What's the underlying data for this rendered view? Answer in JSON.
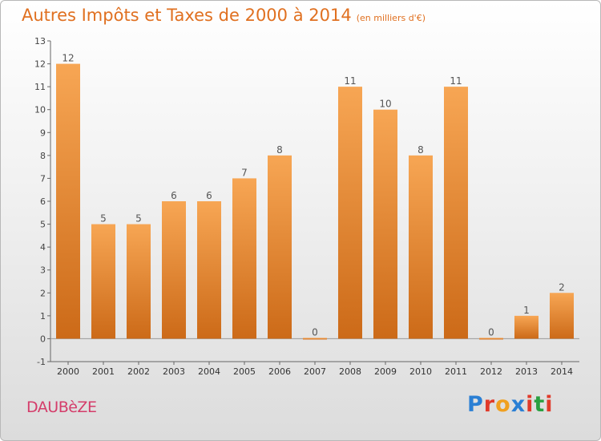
{
  "title": "Autres Impôts et Taxes de 2000 à 2014",
  "subtitle": "(en milliers d'€)",
  "town": "DAUBèZE",
  "logo": {
    "text": "Proxiti",
    "letters": [
      "P",
      "r",
      "o",
      "x",
      "i",
      "t",
      "i"
    ],
    "colors": [
      "#2a7fd4",
      "#e03a2a",
      "#f0a020",
      "#2a7fd4",
      "#e03a2a",
      "#2aa040",
      "#e03a2a"
    ]
  },
  "colors": {
    "bar_top": "#f7a654",
    "bar_bottom": "#cc6a18",
    "title": "#e07020",
    "town": "#d43c6a",
    "label": "#555555"
  },
  "chart_data": {
    "type": "bar",
    "categories": [
      "2000",
      "2001",
      "2002",
      "2003",
      "2004",
      "2005",
      "2006",
      "2007",
      "2008",
      "2009",
      "2010",
      "2011",
      "2012",
      "2013",
      "2014"
    ],
    "values": [
      12,
      5,
      5,
      6,
      6,
      7,
      8,
      0,
      11,
      10,
      8,
      11,
      0,
      1,
      2
    ],
    "data_labels": [
      "12",
      "5",
      "5",
      "6",
      "6",
      "7",
      "8",
      "0",
      "11",
      "10",
      "8",
      "11",
      "0",
      "1",
      "2"
    ],
    "title": "Autres Impôts et Taxes de 2000 à 2014",
    "subtitle": "(en milliers d'€)",
    "xlabel": "",
    "ylabel": "",
    "ylim": [
      -1,
      13
    ],
    "yticks": [
      -1,
      0,
      1,
      2,
      3,
      4,
      5,
      6,
      7,
      8,
      9,
      10,
      11,
      12,
      13
    ],
    "grid": false,
    "legend": "none"
  }
}
